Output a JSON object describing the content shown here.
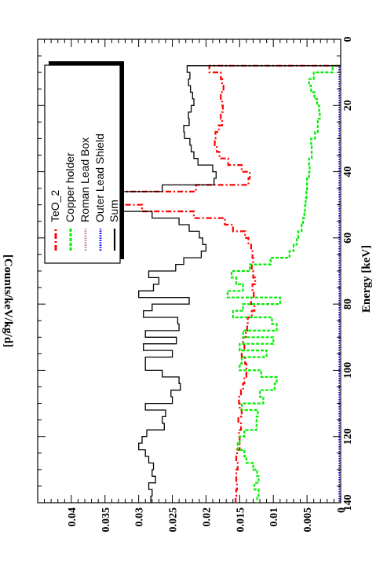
{
  "chart_data": {
    "type": "line",
    "orientation": "rotated-90-ccw",
    "xlabel": "Energy [keV]",
    "ylabel": "[Counts/keV/kg/d]",
    "xlim": [
      0,
      140
    ],
    "ylim": [
      0,
      0.045
    ],
    "x_ticks": [
      {
        "v": 0,
        "label": "0"
      },
      {
        "v": 20,
        "label": "20"
      },
      {
        "v": 40,
        "label": "40"
      },
      {
        "v": 60,
        "label": "60"
      },
      {
        "v": 80,
        "label": "80"
      },
      {
        "v": 100,
        "label": "100"
      },
      {
        "v": 120,
        "label": "120"
      },
      {
        "v": 140,
        "label": "140"
      }
    ],
    "y_ticks": [
      {
        "v": 0,
        "label": "0"
      },
      {
        "v": 0.005,
        "label": "0.005"
      },
      {
        "v": 0.01,
        "label": "0.01"
      },
      {
        "v": 0.015,
        "label": "0.015"
      },
      {
        "v": 0.02,
        "label": "0.02"
      },
      {
        "v": 0.025,
        "label": "0.025"
      },
      {
        "v": 0.03,
        "label": "0.03"
      },
      {
        "v": 0.035,
        "label": "0.035"
      },
      {
        "v": 0.04,
        "label": "0.04"
      }
    ],
    "legend_position": "top-right",
    "bin_edges": [
      8,
      10,
      12,
      14,
      16,
      18,
      20,
      22,
      24,
      26,
      28,
      30,
      32,
      34,
      36,
      38,
      40,
      42,
      44,
      46,
      48,
      50,
      52,
      54,
      56,
      58,
      60,
      62,
      64,
      66,
      68,
      70,
      72,
      74,
      76,
      78,
      80,
      82,
      84,
      86,
      88,
      90,
      92,
      94,
      96,
      98,
      100,
      102,
      104,
      106,
      108,
      110,
      112,
      114,
      116,
      118,
      120,
      122,
      124,
      126,
      128,
      130,
      132,
      134,
      136,
      138,
      140
    ],
    "series": [
      {
        "name": "TeO_2",
        "color": "#ff0000",
        "style": "dashdot",
        "values": [
          0.0195,
          0.0178,
          0.0176,
          0.0174,
          0.0178,
          0.0176,
          0.0175,
          0.0178,
          0.0176,
          0.0181,
          0.0186,
          0.0187,
          0.0184,
          0.018,
          0.0167,
          0.0147,
          0.0135,
          0.0137,
          0.0215,
          0.0381,
          0.0372,
          0.0295,
          0.0218,
          0.0172,
          0.016,
          0.0142,
          0.0137,
          0.0133,
          0.0131,
          0.013,
          0.0132,
          0.013,
          0.0127,
          0.0131,
          0.0129,
          0.0133,
          0.0128,
          0.0132,
          0.0138,
          0.0139,
          0.0141,
          0.0145,
          0.0143,
          0.0147,
          0.0142,
          0.014,
          0.014,
          0.0143,
          0.0145,
          0.0148,
          0.0151,
          0.015,
          0.0147,
          0.0152,
          0.0148,
          0.0151,
          0.015,
          0.015,
          0.0154,
          0.0155,
          0.0153,
          0.0155,
          0.0155,
          0.0154,
          0.0155,
          0.0156
        ]
      },
      {
        "name": "Copper holder",
        "color": "#00ee00",
        "style": "dashed",
        "values": [
          0.0012,
          0.004,
          0.0047,
          0.0044,
          0.0039,
          0.0035,
          0.0032,
          0.0031,
          0.0034,
          0.0034,
          0.0038,
          0.0044,
          0.0043,
          0.0043,
          0.0047,
          0.0046,
          0.0047,
          0.005,
          0.005,
          0.0051,
          0.0052,
          0.0053,
          0.0054,
          0.0056,
          0.0058,
          0.0063,
          0.0065,
          0.007,
          0.0076,
          0.0104,
          0.0135,
          0.0162,
          0.0155,
          0.0145,
          0.0168,
          0.009,
          0.0145,
          0.016,
          0.0102,
          0.0095,
          0.0145,
          0.01,
          0.015,
          0.011,
          0.0147,
          0.015,
          0.0118,
          0.0095,
          0.0098,
          0.012,
          0.0115,
          0.0147,
          0.0123,
          0.0125,
          0.0125,
          0.0143,
          0.015,
          0.0153,
          0.0143,
          0.014,
          0.013,
          0.0124,
          0.0122,
          0.0128,
          0.0122,
          0.0124
        ]
      },
      {
        "name": "Roman Lead Box",
        "color": "#c08080",
        "style": "dotted",
        "values": [
          0.0001,
          0.0001,
          0.0001,
          0.0001,
          0.0001,
          0.0001,
          0.0001,
          0.0001,
          0.0001,
          0.0001,
          0.0001,
          0.0001,
          0.0001,
          0.0001,
          0.0001,
          0.0001,
          0.0001,
          0.0001,
          0.0001,
          0.0001,
          0.0001,
          0.0001,
          0.0001,
          0.0001,
          0.0001,
          0.0001,
          0.0001,
          0.0001,
          0.0001,
          0.0001,
          0.0001,
          0.0001,
          0.0001,
          0.0001,
          0.0001,
          0.0001,
          0.0001,
          0.0001,
          0.0001,
          0.0001,
          0.0001,
          0.0001,
          0.0001,
          0.0001,
          0.0001,
          0.0001,
          0.0001,
          0.0001,
          0.0001,
          0.0001,
          0.0001,
          0.0001,
          0.0001,
          0.0001,
          0.0001,
          0.0001,
          0.0001,
          0.0001,
          0.0001,
          0.0001,
          0.0001,
          0.0001,
          0.0001,
          0.0001,
          0.0001,
          0.0001
        ]
      },
      {
        "name": "Outer Lead Shield",
        "color": "#0000ff",
        "style": "dotted",
        "values": [
          0.0002,
          0.0002,
          0.0002,
          0.0002,
          0.0002,
          0.0002,
          0.0002,
          0.0002,
          0.0002,
          0.0002,
          0.0002,
          0.0002,
          0.0002,
          0.0002,
          0.0002,
          0.0002,
          0.0002,
          0.0002,
          0.0002,
          0.0002,
          0.0002,
          0.0002,
          0.0002,
          0.0002,
          0.0002,
          0.0002,
          0.0002,
          0.0002,
          0.0002,
          0.0002,
          0.0002,
          0.0002,
          0.0002,
          0.0002,
          0.0002,
          0.0002,
          0.0002,
          0.0002,
          0.0002,
          0.0002,
          0.0002,
          0.0002,
          0.0002,
          0.0002,
          0.0002,
          0.0002,
          0.0002,
          0.0002,
          0.0002,
          0.0002,
          0.0002,
          0.0002,
          0.0002,
          0.0002,
          0.0002,
          0.0002,
          0.0002,
          0.0002,
          0.0002,
          0.0002,
          0.0002,
          0.0002,
          0.0002,
          0.0002,
          0.0002,
          0.0002
        ]
      },
      {
        "name": "Sum",
        "color": "#000000",
        "style": "solid",
        "values": [
          0.0228,
          0.0224,
          0.0226,
          0.0223,
          0.022,
          0.0218,
          0.0222,
          0.0226,
          0.0225,
          0.0233,
          0.0232,
          0.0224,
          0.0222,
          0.0218,
          0.0212,
          0.019,
          0.0185,
          0.0188,
          0.0265,
          0.043,
          0.0422,
          0.0345,
          0.028,
          0.024,
          0.0225,
          0.021,
          0.0205,
          0.02,
          0.0207,
          0.0233,
          0.0245,
          0.0285,
          0.027,
          0.0278,
          0.03,
          0.0225,
          0.028,
          0.0293,
          0.0242,
          0.024,
          0.029,
          0.0244,
          0.0293,
          0.025,
          0.029,
          0.029,
          0.0265,
          0.024,
          0.0238,
          0.0252,
          0.025,
          0.029,
          0.026,
          0.0265,
          0.0262,
          0.0288,
          0.0295,
          0.03,
          0.029,
          0.0285,
          0.0278,
          0.028,
          0.0275,
          0.0285,
          0.028,
          0.0282
        ]
      }
    ]
  }
}
